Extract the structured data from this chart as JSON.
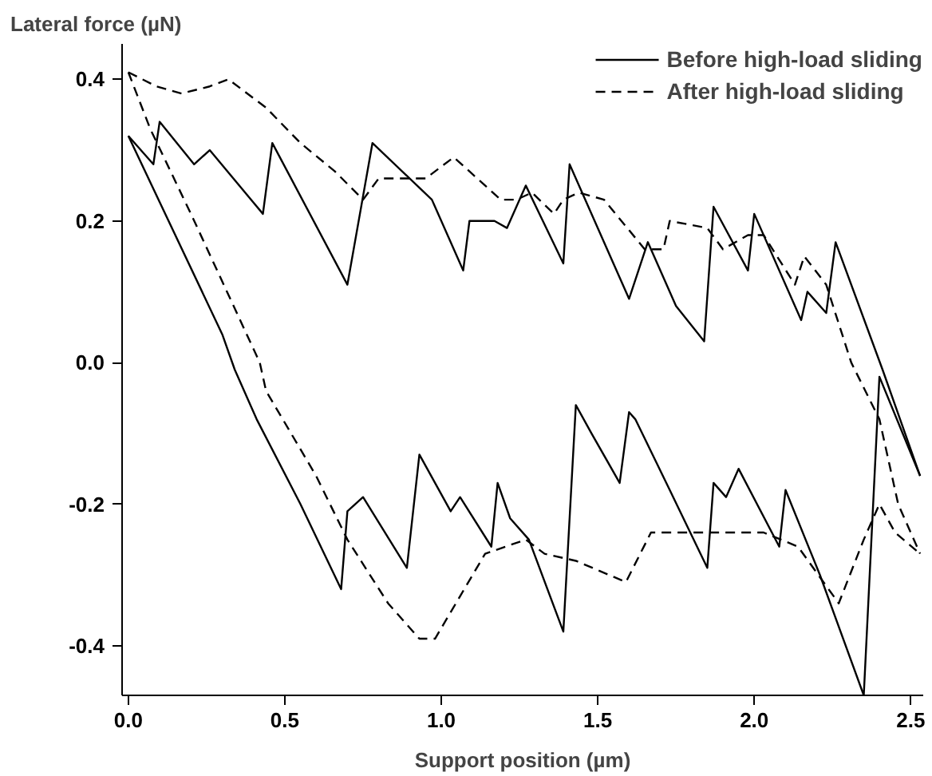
{
  "chart_data": {
    "type": "line",
    "xlabel": "Support position (µm)",
    "ylabel": "Lateral force (µN)",
    "xlim": [
      -0.02,
      2.54
    ],
    "ylim": [
      -0.47,
      0.45
    ],
    "xticks": [
      {
        "value": 0,
        "label": "0.0"
      },
      0.5,
      {
        "value": 1,
        "label": "1.0"
      },
      1.5,
      {
        "value": 2,
        "label": "2.0"
      },
      2.5
    ],
    "yticks": [
      {
        "value": -0.4,
        "label": "-0.4"
      },
      {
        "value": -0.2,
        "label": "-0.2"
      },
      {
        "value": 0,
        "label": "0.0"
      },
      0.2,
      0.4
    ],
    "grid": false,
    "legend": "top right",
    "marker": "none",
    "series": [
      {
        "name": "Before high-load sliding",
        "color": "#000000",
        "line_style": "solid",
        "x": [
          0,
          0.3,
          0.34,
          0.41,
          0.55,
          0.68,
          0.7,
          0.75,
          0.89,
          0.93,
          1.03,
          1.06,
          1.16,
          1.18,
          1.22,
          1.28,
          1.39,
          1.43,
          1.48,
          1.57,
          1.6,
          1.62,
          1.73,
          1.85,
          1.87,
          1.91,
          1.95,
          2.08,
          2.1,
          2.21,
          2.35,
          2.4,
          2.53
        ],
        "values": [
          0.32,
          0.04,
          -0.01,
          -0.08,
          -0.2,
          -0.32,
          -0.21,
          -0.19,
          -0.29,
          -0.13,
          -0.21,
          -0.19,
          -0.26,
          -0.17,
          -0.22,
          -0.25,
          -0.38,
          -0.06,
          -0.1,
          -0.17,
          -0.07,
          -0.08,
          -0.18,
          -0.29,
          -0.17,
          -0.19,
          -0.15,
          -0.26,
          -0.18,
          -0.3,
          -0.47,
          -0.02,
          -0.16
        ]
      },
      {
        "color": "#000000",
        "line_style": "solid",
        "x": [
          0,
          0.08,
          0.1,
          0.21,
          0.26,
          0.43,
          0.46,
          0.7,
          0.78,
          0.97,
          1.07,
          1.09,
          1.17,
          1.21,
          1.27,
          1.39,
          1.41,
          1.6,
          1.66,
          1.75,
          1.84,
          1.87,
          1.98,
          2.0,
          2.15,
          2.17,
          2.23,
          2.26,
          2.41,
          2.53
        ],
        "values": [
          0.32,
          0.28,
          0.34,
          0.28,
          0.3,
          0.21,
          0.31,
          0.11,
          0.31,
          0.23,
          0.13,
          0.2,
          0.2,
          0.19,
          0.25,
          0.14,
          0.28,
          0.09,
          0.17,
          0.08,
          0.03,
          0.22,
          0.13,
          0.21,
          0.06,
          0.1,
          0.07,
          0.17,
          -0.01,
          -0.16
        ]
      },
      {
        "name": "After high-load sliding",
        "color": "#000000",
        "line_style": "dashed",
        "x": [
          0,
          0.07,
          0.2,
          0.42,
          0.44,
          0.6,
          0.7,
          0.83,
          0.93,
          0.98,
          1.06,
          1.14,
          1.27,
          1.33,
          1.43,
          1.59,
          1.67,
          1.87,
          2.03,
          2.14,
          2.27,
          2.35,
          2.4,
          2.45,
          2.53
        ],
        "values": [
          0.41,
          0.33,
          0.21,
          0.0,
          -0.04,
          -0.16,
          -0.25,
          -0.34,
          -0.39,
          -0.39,
          -0.33,
          -0.27,
          -0.25,
          -0.27,
          -0.28,
          -0.31,
          -0.24,
          -0.24,
          -0.24,
          -0.26,
          -0.34,
          -0.25,
          -0.2,
          -0.24,
          -0.27
        ]
      },
      {
        "color": "#000000",
        "line_style": "dashed",
        "x": [
          0,
          0.09,
          0.17,
          0.26,
          0.32,
          0.44,
          0.55,
          0.66,
          0.75,
          0.8,
          0.87,
          0.95,
          1.04,
          1.19,
          1.24,
          1.29,
          1.36,
          1.39,
          1.44,
          1.52,
          1.65,
          1.71,
          1.73,
          1.85,
          1.9,
          1.98,
          2.03,
          2.13,
          2.16,
          2.23,
          2.31,
          2.4,
          2.46,
          2.53
        ],
        "values": [
          0.41,
          0.39,
          0.38,
          0.39,
          0.4,
          0.36,
          0.31,
          0.27,
          0.23,
          0.26,
          0.26,
          0.26,
          0.29,
          0.23,
          0.23,
          0.24,
          0.21,
          0.23,
          0.24,
          0.23,
          0.16,
          0.16,
          0.2,
          0.19,
          0.16,
          0.18,
          0.18,
          0.11,
          0.15,
          0.11,
          0.0,
          -0.08,
          -0.2,
          -0.27
        ]
      }
    ]
  }
}
